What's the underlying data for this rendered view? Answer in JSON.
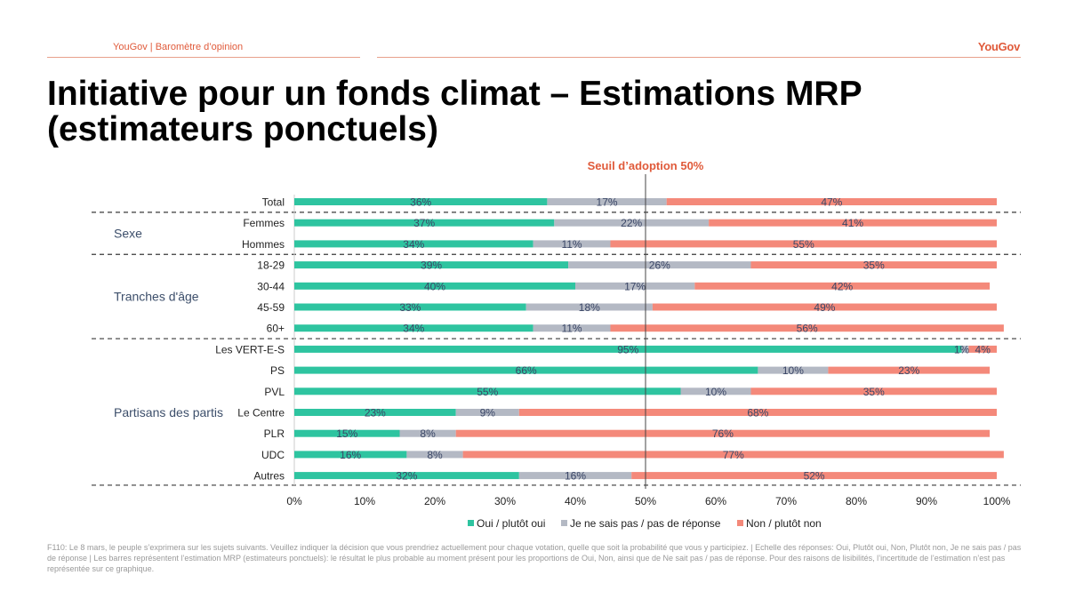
{
  "header": {
    "label": "YouGov | Baromètre d’opinion",
    "logo": "YouGov",
    "title": "Initiative pour un fonds climat – Estimations MRP (estimateurs ponctuels)"
  },
  "chart_data": {
    "type": "bar",
    "stacked": true,
    "orientation": "horizontal",
    "threshold_label": "Seuil d’adoption 50%",
    "threshold_value": 50,
    "xlim": [
      0,
      100
    ],
    "xticks": [
      "0%",
      "10%",
      "20%",
      "30%",
      "40%",
      "50%",
      "60%",
      "70%",
      "80%",
      "90%",
      "100%"
    ],
    "categories": [
      "Total",
      "Femmes",
      "Hommes",
      "18-29",
      "30-44",
      "45-59",
      "60+",
      "Les VERT-E-S",
      "PS",
      "PVL",
      "Le Centre",
      "PLR",
      "UDC",
      "Autres"
    ],
    "groups": [
      {
        "name": "Sexe",
        "rows": [
          "Femmes",
          "Hommes"
        ]
      },
      {
        "name": "Tranches d'âge",
        "rows": [
          "18-29",
          "30-44",
          "45-59",
          "60+"
        ]
      },
      {
        "name": "Partisans des partis",
        "rows": [
          "Les VERT-E-S",
          "PS",
          "PVL",
          "Le Centre",
          "PLR",
          "UDC",
          "Autres"
        ]
      }
    ],
    "series": [
      {
        "name": "Oui / plutôt oui",
        "color": "#2ec4a0",
        "values": [
          36,
          37,
          34,
          39,
          40,
          33,
          34,
          95,
          66,
          55,
          23,
          15,
          16,
          32
        ]
      },
      {
        "name": "Je ne sais pas / pas de réponse",
        "color": "#b4b9c4",
        "values": [
          17,
          22,
          11,
          26,
          17,
          18,
          11,
          1,
          10,
          10,
          9,
          8,
          8,
          16
        ]
      },
      {
        "name": "Non / plutôt non",
        "color": "#f4897a",
        "values": [
          47,
          41,
          55,
          35,
          42,
          49,
          56,
          4,
          23,
          35,
          68,
          76,
          77,
          52
        ]
      }
    ]
  },
  "footnote": "F110: Le 8 mars, le peuple s’exprimera sur les sujets suivants. Veuillez indiquer la décision que vous prendriez actuellement pour chaque votation, quelle que soit la probabilité que vous y participiez. | Echelle des réponses: Oui, Plutôt oui, Non, Plutôt non, Je ne sais pas / pas de réponse | Les barres représentent l’estimation MRP (estimateurs ponctuels): le résultat le plus probable au moment présent pour les proportions de Oui, Non, ainsi que de Ne sait pas / pas de réponse. Pour des raisons de lisibilités, l’incertitude de l’estimation n’est pas représentée sur ce graphique."
}
